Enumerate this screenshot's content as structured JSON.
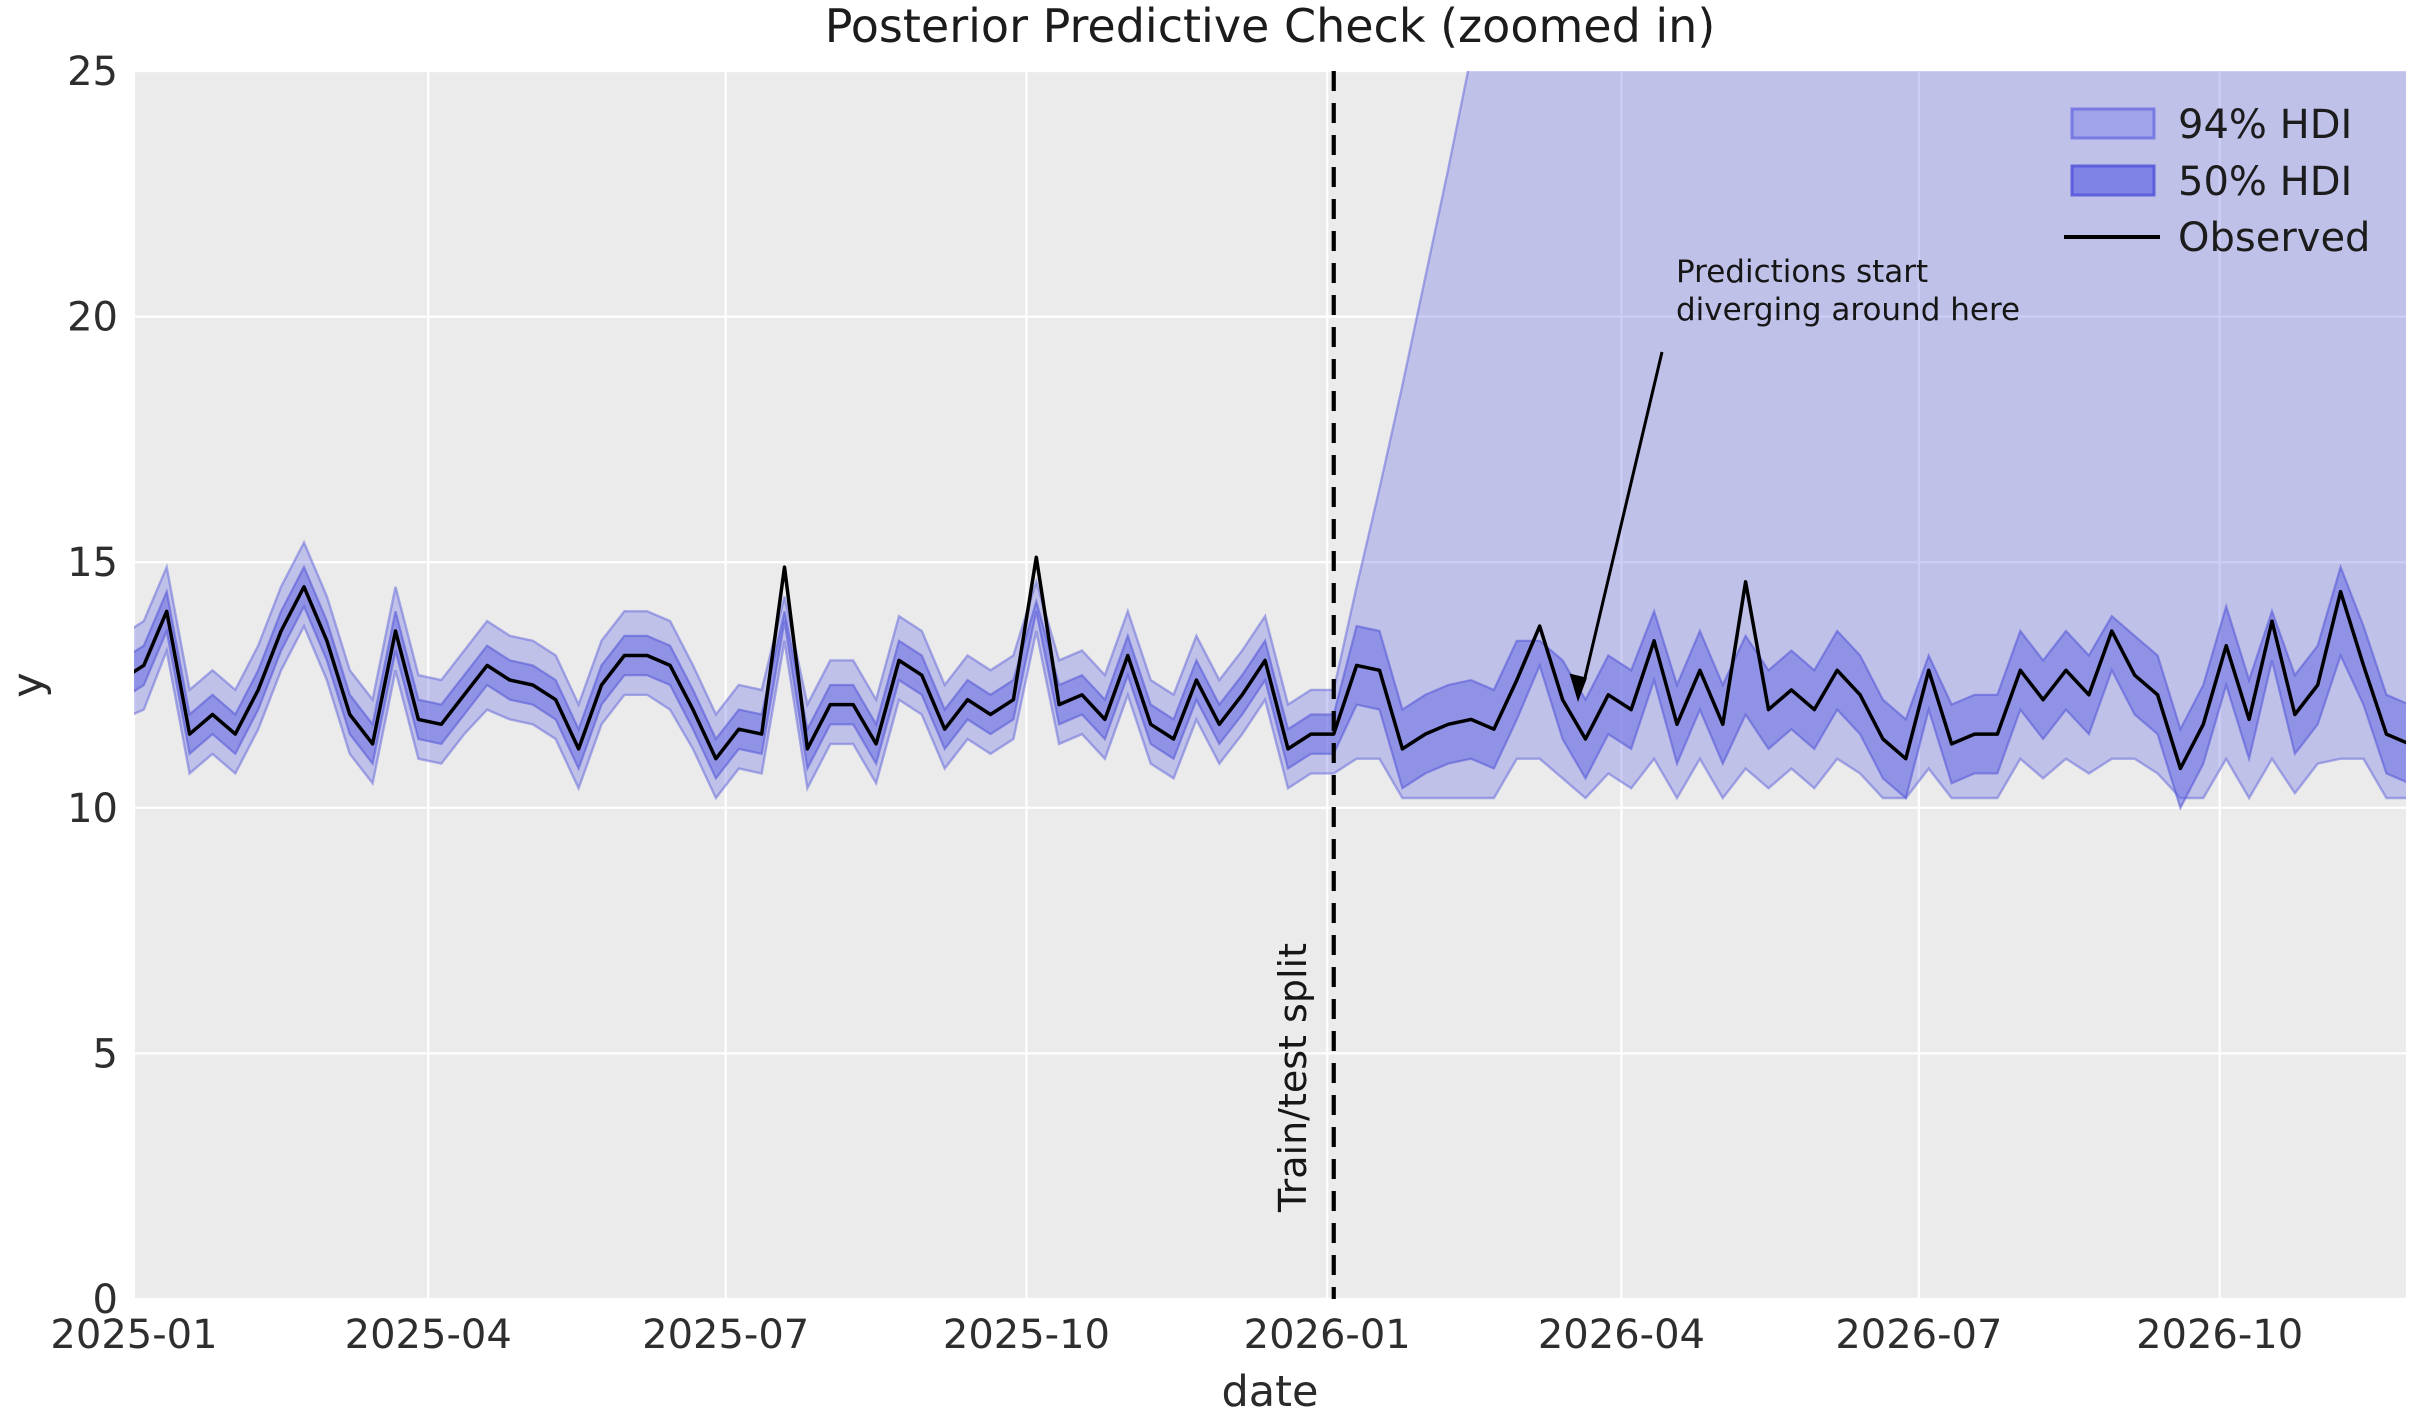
{
  "colors": {
    "plot_background": "#ebebeb",
    "gridline": "#ffffff",
    "band_base": "#7b7ee8",
    "band_edge": "#6a6dda",
    "observed_line": "#000000",
    "split_line": "#000000"
  },
  "legend": {
    "items": [
      {
        "label": "94% HDI",
        "swatch": "light-band"
      },
      {
        "label": "50% HDI",
        "swatch": "dark-band"
      },
      {
        "label": "Observed",
        "swatch": "black-line"
      }
    ]
  },
  "annotation": {
    "line1": "Predictions start",
    "line2": "diverging around here"
  },
  "split_label": "Train/test split",
  "chart_data": {
    "type": "line",
    "title": "Posterior Predictive Check (zoomed in)",
    "xlabel": "date",
    "ylabel": "y",
    "ylim": [
      0,
      25
    ],
    "xlim": [
      "2025-01-01",
      "2026-11-27"
    ],
    "grid": true,
    "legend_position": "upper right",
    "y_tick_labels": [
      "0",
      "5",
      "10",
      "15",
      "20",
      "25"
    ],
    "y_tick_values": [
      0,
      5,
      10,
      15,
      20,
      25
    ],
    "x_tick_labels": [
      "2025-01",
      "2025-04",
      "2025-07",
      "2025-10",
      "2026-01",
      "2026-04",
      "2026-07",
      "2026-10"
    ],
    "x_tick_dates": [
      "2025-01-01",
      "2025-04-01",
      "2025-07-01",
      "2025-10-01",
      "2026-01-01",
      "2026-04-01",
      "2026-07-01",
      "2026-10-01"
    ],
    "split_date": "2026-01-03",
    "dates": {
      "start": "2024-12-28",
      "step_days": 7,
      "count": 101
    },
    "observed": [
      12.6,
      12.9,
      14.0,
      11.5,
      11.9,
      11.5,
      12.4,
      13.6,
      14.5,
      13.4,
      11.9,
      11.3,
      13.6,
      11.8,
      11.7,
      12.3,
      12.9,
      12.6,
      12.5,
      12.2,
      11.2,
      12.5,
      13.1,
      13.1,
      12.9,
      12.0,
      11.0,
      11.6,
      11.5,
      14.9,
      11.2,
      12.1,
      12.1,
      11.3,
      13.0,
      12.7,
      11.6,
      12.2,
      11.9,
      12.2,
      15.1,
      12.1,
      12.3,
      11.8,
      13.1,
      11.7,
      11.4,
      12.6,
      11.7,
      12.3,
      13.0,
      11.2,
      11.5,
      11.5,
      12.9,
      12.8,
      11.2,
      11.5,
      11.7,
      11.8,
      11.6,
      12.6,
      13.7,
      12.2,
      11.4,
      12.3,
      12.0,
      13.4,
      11.7,
      12.8,
      11.7,
      14.6,
      12.0,
      12.4,
      12.0,
      12.8,
      12.3,
      11.4,
      11.0,
      12.8,
      11.3,
      11.5,
      11.5,
      12.8,
      12.2,
      12.8,
      12.3,
      13.6,
      12.7,
      12.3,
      10.8,
      11.7,
      13.3,
      11.8,
      13.8,
      11.9,
      12.5,
      14.4,
      12.9,
      11.5,
      11.3
    ],
    "hdi50": {
      "lower": [
        12.2,
        12.5,
        13.6,
        11.1,
        11.5,
        11.1,
        12.0,
        13.2,
        14.1,
        13.0,
        11.5,
        10.9,
        13.2,
        11.4,
        11.3,
        11.9,
        12.5,
        12.2,
        12.1,
        11.8,
        10.8,
        12.1,
        12.7,
        12.7,
        12.5,
        11.6,
        10.6,
        11.2,
        11.1,
        13.8,
        10.8,
        11.7,
        11.7,
        10.9,
        12.6,
        12.3,
        11.2,
        11.8,
        11.5,
        11.8,
        14.0,
        11.7,
        11.9,
        11.4,
        12.7,
        11.3,
        11.0,
        12.2,
        11.3,
        11.9,
        12.6,
        10.8,
        11.1,
        11.1,
        12.1,
        12.0,
        10.4,
        10.7,
        10.9,
        11.0,
        10.8,
        11.8,
        12.9,
        11.4,
        10.6,
        11.5,
        11.2,
        12.6,
        10.9,
        12.0,
        10.9,
        11.9,
        11.2,
        11.6,
        11.2,
        12.0,
        11.5,
        10.6,
        10.2,
        12.0,
        10.5,
        10.7,
        10.7,
        12.0,
        11.4,
        12.0,
        11.5,
        12.8,
        11.9,
        11.5,
        10.0,
        10.9,
        12.5,
        11.0,
        13.0,
        11.1,
        11.7,
        13.1,
        12.1,
        10.7,
        10.5
      ],
      "upper": [
        13.0,
        13.3,
        14.4,
        11.9,
        12.3,
        11.9,
        12.8,
        14.0,
        14.9,
        13.8,
        12.3,
        11.7,
        14.0,
        12.2,
        12.1,
        12.7,
        13.3,
        13.0,
        12.9,
        12.6,
        11.6,
        12.9,
        13.5,
        13.5,
        13.3,
        12.4,
        11.4,
        12.0,
        11.9,
        14.0,
        11.6,
        12.5,
        12.5,
        11.7,
        13.4,
        13.1,
        12.0,
        12.6,
        12.3,
        12.6,
        14.2,
        12.5,
        12.7,
        12.2,
        13.5,
        12.1,
        11.8,
        13.0,
        12.1,
        12.7,
        13.4,
        11.6,
        11.9,
        11.9,
        13.7,
        13.6,
        12.0,
        12.3,
        12.5,
        12.6,
        12.4,
        13.4,
        13.4,
        13.0,
        12.2,
        13.1,
        12.8,
        14.0,
        12.5,
        13.6,
        12.5,
        13.5,
        12.8,
        13.2,
        12.8,
        13.6,
        13.1,
        12.2,
        11.8,
        13.1,
        12.1,
        12.3,
        12.3,
        13.6,
        13.0,
        13.6,
        13.1,
        13.9,
        13.5,
        13.1,
        11.6,
        12.5,
        14.1,
        12.6,
        14.0,
        12.7,
        13.3,
        14.9,
        13.7,
        12.3,
        12.1
      ]
    },
    "hdi94": {
      "lower": [
        11.8,
        12.0,
        13.2,
        10.7,
        11.1,
        10.7,
        11.6,
        12.8,
        13.7,
        12.6,
        11.1,
        10.5,
        12.8,
        11.0,
        10.9,
        11.5,
        12.0,
        11.8,
        11.7,
        11.4,
        10.4,
        11.7,
        12.3,
        12.3,
        12.0,
        11.2,
        10.2,
        10.8,
        10.7,
        13.4,
        10.4,
        11.3,
        11.3,
        10.5,
        12.2,
        11.9,
        10.8,
        11.4,
        11.1,
        11.4,
        13.6,
        11.3,
        11.5,
        11.0,
        12.3,
        10.9,
        10.6,
        11.8,
        10.9,
        11.5,
        12.2,
        10.4,
        10.7,
        10.7,
        11.0,
        11.0,
        10.2,
        10.2,
        10.2,
        10.2,
        10.2,
        11.0,
        11.0,
        10.6,
        10.2,
        10.7,
        10.4,
        11.0,
        10.2,
        11.0,
        10.2,
        10.8,
        10.4,
        10.8,
        10.4,
        11.0,
        10.7,
        10.2,
        10.2,
        10.8,
        10.2,
        10.2,
        10.2,
        11.0,
        10.6,
        11.0,
        10.7,
        11.0,
        11.0,
        10.7,
        10.2,
        10.2,
        11.0,
        10.2,
        11.0,
        10.3,
        10.9,
        11.0,
        11.0,
        10.2,
        10.2
      ],
      "upper": [
        13.5,
        13.8,
        14.9,
        12.4,
        12.8,
        12.4,
        13.3,
        14.5,
        15.4,
        14.3,
        12.8,
        12.2,
        14.5,
        12.7,
        12.6,
        13.2,
        13.8,
        13.5,
        13.4,
        13.1,
        12.1,
        13.4,
        14.0,
        14.0,
        13.8,
        12.9,
        11.9,
        12.5,
        12.4,
        14.3,
        12.1,
        13.0,
        13.0,
        12.2,
        13.9,
        13.6,
        12.5,
        13.1,
        12.8,
        13.1,
        14.6,
        13.0,
        13.2,
        12.7,
        14.0,
        12.6,
        12.3,
        13.5,
        12.6,
        13.2,
        13.9,
        12.1,
        12.4,
        12.4,
        14.5,
        16.5,
        18.6,
        20.8,
        23.0,
        25.3,
        27.7,
        30.2,
        32.8,
        35.5,
        38.3,
        41.2,
        44.0,
        45.0,
        45.0,
        45.0,
        45.0,
        45.0,
        45.0,
        45.0,
        45.0,
        45.0,
        45.0,
        45.0,
        45.0,
        45.0,
        45.0,
        45.0,
        45.0,
        45.0,
        45.0,
        45.0,
        45.0,
        45.0,
        45.0,
        45.0,
        45.0,
        45.0,
        45.0,
        45.0,
        45.0,
        45.0,
        45.0,
        45.0,
        45.0,
        45.0,
        45.0
      ]
    }
  }
}
